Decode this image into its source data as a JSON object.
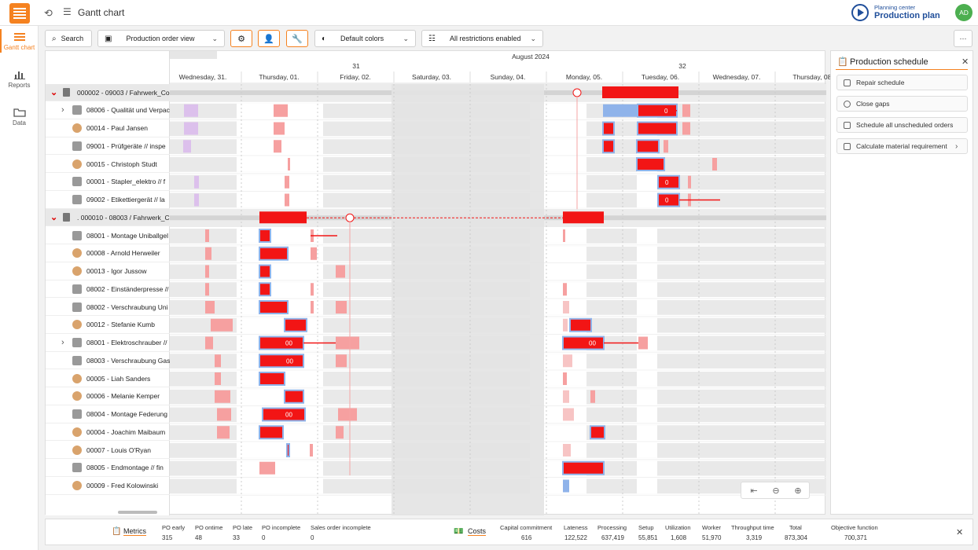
{
  "app": {
    "title": "Gantt chart",
    "planning_label": "Planning center",
    "planning_title": "Production plan",
    "avatar": "AD"
  },
  "sidenav": [
    {
      "label": "Gantt chart",
      "active": true,
      "icon": "gantt-icon"
    },
    {
      "label": "Reports",
      "active": false,
      "icon": "bar-chart-icon"
    },
    {
      "label": "Data",
      "active": false,
      "icon": "folder-icon"
    }
  ],
  "toolbar": {
    "search": "Search",
    "view": "Production order view",
    "colors": "Default colors",
    "restrictions": "All restrictions enabled",
    "more": "···"
  },
  "timeline": {
    "month": "August 2024",
    "weeks": [
      {
        "label": "31"
      },
      {
        "label": "32"
      }
    ],
    "days": [
      "Wednesday, 31.",
      "Thursday, 01.",
      "Friday, 02.",
      "Saturday, 03.",
      "Sunday, 04.",
      "Monday, 05.",
      "Tuesday, 06.",
      "Wednesday, 07.",
      "Thursday, 08."
    ]
  },
  "rows": [
    {
      "label": "000002 - 09003 / Fahrwerk_Co",
      "type": "group"
    },
    {
      "label": "08006 - Qualität und Verpac",
      "type": "machine",
      "expand": true
    },
    {
      "label": "00014 - Paul Jansen",
      "type": "person"
    },
    {
      "label": "09001 - Prüfgeräte // inspe",
      "type": "machine"
    },
    {
      "label": "00015 - Christoph Studt",
      "type": "person"
    },
    {
      "label": "00001 - Stapler_elektro // f",
      "type": "machine"
    },
    {
      "label": "09002 - Etikettiergerät // la",
      "type": "machine"
    },
    {
      "label": ". 000010 - 08003 / Fahrwerk_C",
      "type": "group"
    },
    {
      "label": "08001 - Montage Uniballgel",
      "type": "machine"
    },
    {
      "label": "00008 - Arnold Herweiler",
      "type": "person"
    },
    {
      "label": "00013 - Igor Jussow",
      "type": "person"
    },
    {
      "label": "08002 - Einständerpresse //",
      "type": "machine"
    },
    {
      "label": "08002 - Verschraubung Uni",
      "type": "machine"
    },
    {
      "label": "00012 - Stefanie Kumb",
      "type": "person"
    },
    {
      "label": "08001 - Elektroschrauber //",
      "type": "machine",
      "expand": true
    },
    {
      "label": "08003 - Verschraubung Gas",
      "type": "machine"
    },
    {
      "label": "00005 - Liah Sanders",
      "type": "person"
    },
    {
      "label": "00006 - Melanie Kemper",
      "type": "person"
    },
    {
      "label": "08004 - Montage Federung",
      "type": "machine"
    },
    {
      "label": "00004 - Joachim Maibaum",
      "type": "person"
    },
    {
      "label": "00007 - Louis O'Ryan",
      "type": "person"
    },
    {
      "label": "08005 - Endmontage // fin",
      "type": "machine"
    },
    {
      "label": "00009 - Fred Kolowinski",
      "type": "person"
    }
  ],
  "bar_labels": [
    "0",
    "0",
    "0",
    "00",
    "00",
    "00",
    "00"
  ],
  "panel": {
    "title": "Production schedule",
    "buttons": [
      "Repair schedule",
      "Close gaps",
      "Schedule all unscheduled orders",
      "Calculate material requirement"
    ]
  },
  "footer": {
    "metrics_label": "Metrics",
    "metrics": [
      {
        "name": "PO early",
        "value": "315"
      },
      {
        "name": "PO ontime",
        "value": "48"
      },
      {
        "name": "PO late",
        "value": "33"
      },
      {
        "name": "PO incomplete",
        "value": "0"
      },
      {
        "name": "Sales order incomplete",
        "value": "0"
      }
    ],
    "costs_label": "Costs",
    "costs": [
      {
        "name": "Capital commitment",
        "value": "616"
      },
      {
        "name": "Lateness",
        "value": "122,522"
      },
      {
        "name": "Processing",
        "value": "637,419"
      },
      {
        "name": "Setup",
        "value": "55,851"
      },
      {
        "name": "Utilization",
        "value": "1,608"
      },
      {
        "name": "Worker",
        "value": "51,970"
      },
      {
        "name": "Throughput time",
        "value": "3,319"
      },
      {
        "name": "Total",
        "value": "873,304"
      },
      {
        "name": "Objective function",
        "value": "700,371"
      }
    ]
  },
  "colors": {
    "accent": "#f58220",
    "bar_active": "#f21515",
    "bar_faded": "#f6a0a0",
    "bar_border": "#8fb3ea",
    "purple": "#dcc0ec",
    "title_blue": "#1f4e9a",
    "avatar_green": "#4caf50"
  }
}
